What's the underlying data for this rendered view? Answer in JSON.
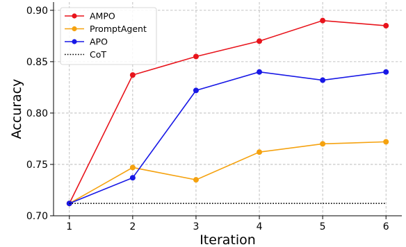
{
  "chart_data": {
    "type": "line",
    "title": "",
    "xlabel": "Iteration",
    "ylabel": "Accuracy",
    "x": [
      1,
      2,
      3,
      4,
      5,
      6
    ],
    "xticks": [
      "1",
      "2",
      "3",
      "4",
      "5",
      "6"
    ],
    "yticks": [
      "0.70",
      "0.75",
      "0.80",
      "0.85",
      "0.90"
    ],
    "ytick_values": [
      0.7,
      0.75,
      0.8,
      0.85,
      0.9
    ],
    "xlim": [
      0.75,
      6.25
    ],
    "ylim": [
      0.7,
      0.908
    ],
    "grid": true,
    "legend_position": "top-left",
    "series": [
      {
        "name": "AMPO",
        "color": "#e8141c",
        "style": "solid",
        "marker": true,
        "values": [
          0.712,
          0.837,
          0.855,
          0.87,
          0.89,
          0.885
        ]
      },
      {
        "name": "PromptAgent",
        "color": "#f5a20f",
        "style": "solid",
        "marker": true,
        "values": [
          0.712,
          0.747,
          0.735,
          0.762,
          0.77,
          0.772
        ]
      },
      {
        "name": "APO",
        "color": "#1818e6",
        "style": "solid",
        "marker": true,
        "values": [
          0.712,
          0.737,
          0.822,
          0.84,
          0.832,
          0.84
        ]
      },
      {
        "name": "CoT",
        "color": "#000000",
        "style": "dotted",
        "marker": false,
        "values": [
          0.712,
          0.712,
          0.712,
          0.712,
          0.712,
          0.712
        ]
      }
    ]
  }
}
